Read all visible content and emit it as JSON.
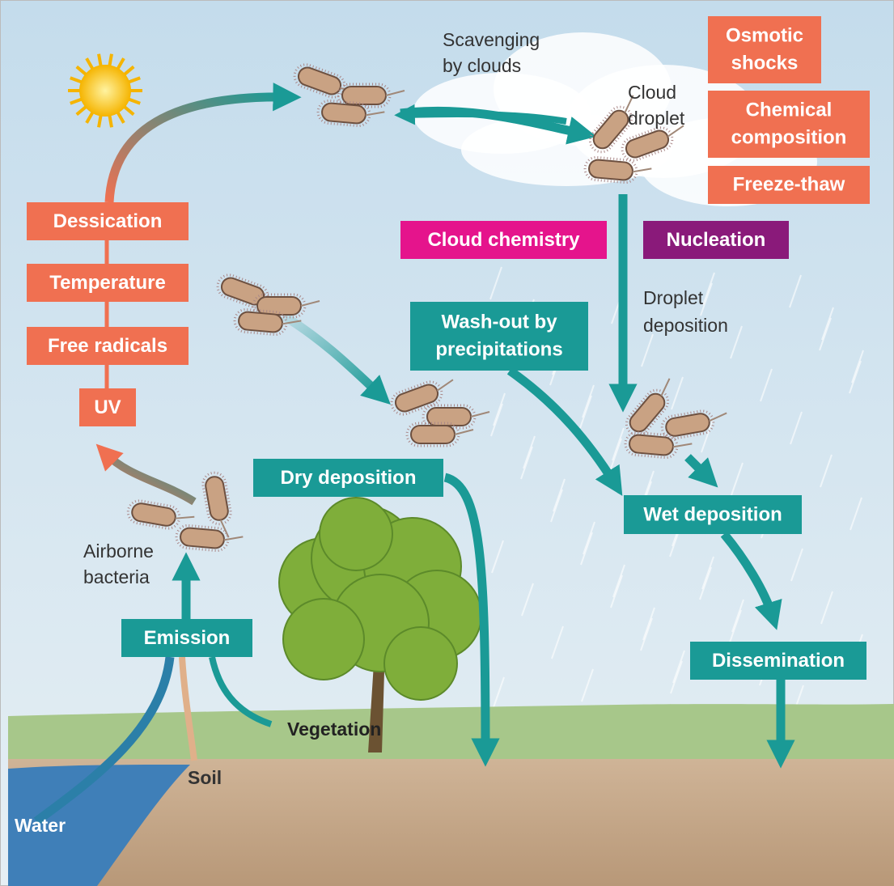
{
  "atmosphere_stressors": [
    "Dessication",
    "Temperature",
    "Free radicals",
    "UV"
  ],
  "cloud_stressors": [
    [
      "Osmotic",
      "shocks"
    ],
    [
      "Chemical",
      "composition"
    ],
    [
      "Freeze-thaw"
    ]
  ],
  "cloud_factors": [
    "Cloud chemistry",
    "Nucleation"
  ],
  "processes": {
    "washout": [
      "Wash-out by",
      "precipitations"
    ],
    "dry_deposition": "Dry deposition",
    "wet_deposition": "Wet deposition",
    "emission": "Emission",
    "dissemination": "Dissemination"
  },
  "labels": {
    "scavenging": [
      "Scavenging",
      "by clouds"
    ],
    "cloud_droplet": [
      "Cloud",
      "droplet"
    ],
    "droplet_deposition": [
      "Droplet",
      "deposition"
    ],
    "airborne_bacteria": [
      "Airborne",
      "bacteria"
    ],
    "vegetation": "Vegetation",
    "soil": "Soil",
    "water": "Water"
  }
}
